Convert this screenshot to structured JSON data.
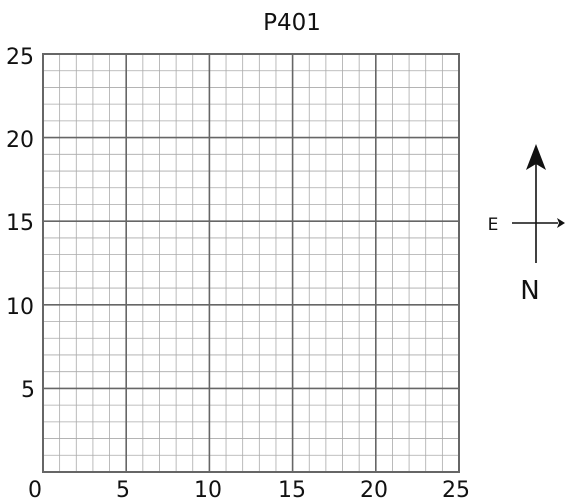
{
  "title": "P401",
  "grid": {
    "x_range": [
      0,
      25
    ],
    "y_range": [
      0,
      25
    ],
    "minor_step": 1,
    "major_step": 5,
    "x_tick_labels": [
      "0",
      "5",
      "10",
      "15",
      "20",
      "25"
    ],
    "y_tick_labels": [
      "25",
      "20",
      "15",
      "10",
      "5"
    ],
    "minor_line_color": "#aaaaaa",
    "major_line_color": "#666666",
    "border_color": "#666666"
  },
  "compass": {
    "east_label": "E",
    "north_label": "N",
    "color": "#111111"
  }
}
